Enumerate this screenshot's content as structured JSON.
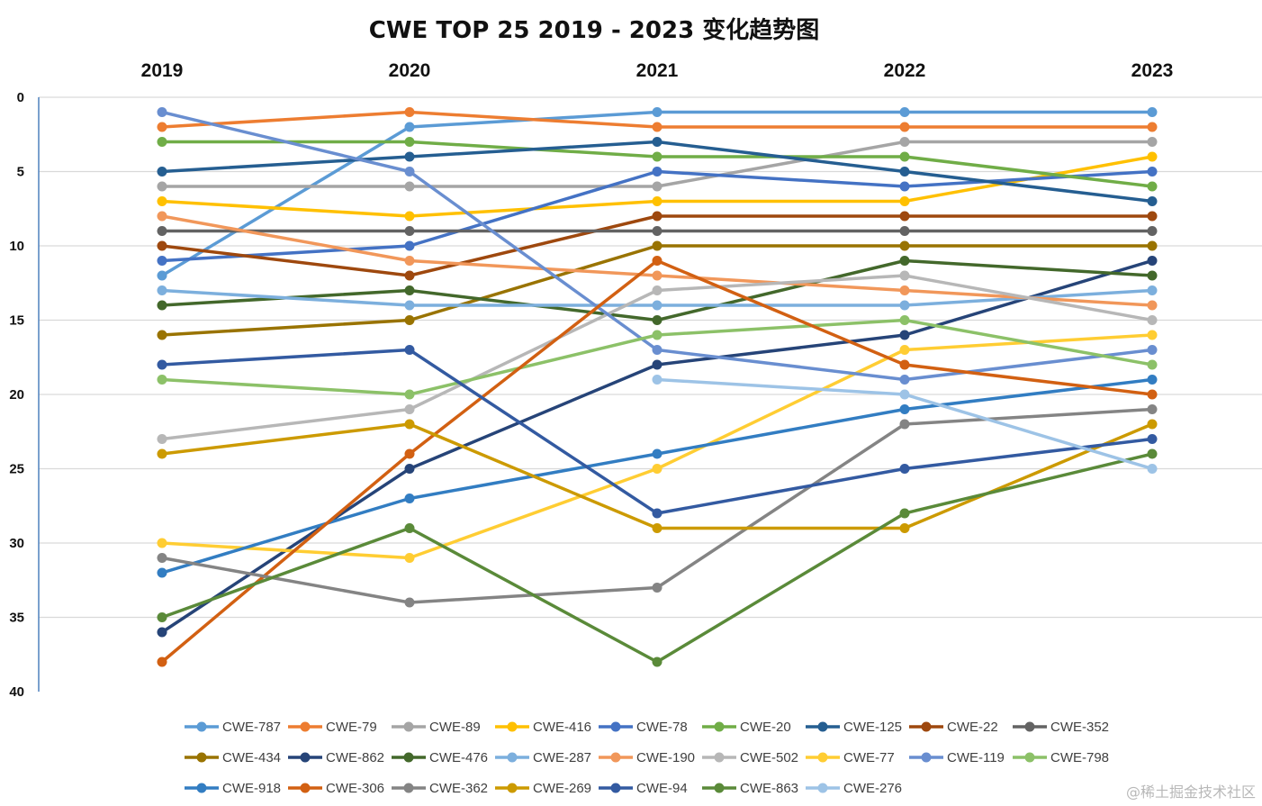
{
  "chart_data": {
    "type": "line",
    "title": "CWE TOP 25 2019 - 2023 变化趋势图",
    "x": [
      "2019",
      "2020",
      "2021",
      "2022",
      "2023"
    ],
    "ylim": [
      0,
      40
    ],
    "y_reversed": true,
    "y_ticks": [
      0,
      5,
      10,
      15,
      20,
      25,
      30,
      35,
      40
    ],
    "grid": true,
    "legend_position": "bottom",
    "series": [
      {
        "name": "CWE-787",
        "color": "#5B9BD5",
        "values": [
          12,
          2,
          1,
          1,
          1
        ]
      },
      {
        "name": "CWE-79",
        "color": "#ED7D31",
        "values": [
          2,
          1,
          2,
          2,
          2
        ]
      },
      {
        "name": "CWE-89",
        "color": "#A5A5A5",
        "values": [
          6,
          6,
          6,
          3,
          3
        ]
      },
      {
        "name": "CWE-416",
        "color": "#FFC000",
        "values": [
          7,
          8,
          7,
          7,
          4
        ]
      },
      {
        "name": "CWE-78",
        "color": "#4472C4",
        "values": [
          11,
          10,
          5,
          6,
          5
        ]
      },
      {
        "name": "CWE-20",
        "color": "#70AD47",
        "values": [
          3,
          3,
          4,
          4,
          6
        ]
      },
      {
        "name": "CWE-125",
        "color": "#255E91",
        "values": [
          5,
          4,
          3,
          5,
          7
        ]
      },
      {
        "name": "CWE-22",
        "color": "#9E480E",
        "values": [
          10,
          12,
          8,
          8,
          8
        ]
      },
      {
        "name": "CWE-352",
        "color": "#636363",
        "values": [
          9,
          9,
          9,
          9,
          9
        ]
      },
      {
        "name": "CWE-434",
        "color": "#997300",
        "values": [
          16,
          15,
          10,
          10,
          10
        ]
      },
      {
        "name": "CWE-862",
        "color": "#264478",
        "values": [
          36,
          25,
          18,
          16,
          11
        ]
      },
      {
        "name": "CWE-476",
        "color": "#43682B",
        "values": [
          14,
          13,
          15,
          11,
          12
        ]
      },
      {
        "name": "CWE-287",
        "color": "#7CAFDD",
        "values": [
          13,
          14,
          14,
          14,
          13
        ]
      },
      {
        "name": "CWE-190",
        "color": "#F1975A",
        "values": [
          8,
          11,
          12,
          13,
          14
        ]
      },
      {
        "name": "CWE-502",
        "color": "#B7B7B7",
        "values": [
          23,
          21,
          13,
          12,
          15
        ]
      },
      {
        "name": "CWE-77",
        "color": "#FFCD33",
        "values": [
          30,
          31,
          25,
          17,
          16
        ]
      },
      {
        "name": "CWE-119",
        "color": "#698ED0",
        "values": [
          1,
          5,
          17,
          19,
          17
        ]
      },
      {
        "name": "CWE-798",
        "color": "#8CC168",
        "values": [
          19,
          20,
          16,
          15,
          18
        ]
      },
      {
        "name": "CWE-918",
        "color": "#327DC2",
        "values": [
          32,
          27,
          24,
          21,
          19
        ]
      },
      {
        "name": "CWE-306",
        "color": "#D26012",
        "values": [
          38,
          24,
          11,
          18,
          20
        ]
      },
      {
        "name": "CWE-362",
        "color": "#848484",
        "values": [
          31,
          34,
          33,
          22,
          21
        ]
      },
      {
        "name": "CWE-269",
        "color": "#CC9A00",
        "values": [
          24,
          22,
          29,
          29,
          22
        ]
      },
      {
        "name": "CWE-94",
        "color": "#335AA1",
        "values": [
          18,
          17,
          28,
          25,
          23
        ]
      },
      {
        "name": "CWE-863",
        "color": "#5A8A39",
        "values": [
          35,
          29,
          38,
          28,
          24
        ]
      },
      {
        "name": "CWE-276",
        "color": "#9DC3E6",
        "values": [
          null,
          null,
          19,
          20,
          25
        ]
      }
    ]
  },
  "watermark": "@稀土掘金技术社区"
}
